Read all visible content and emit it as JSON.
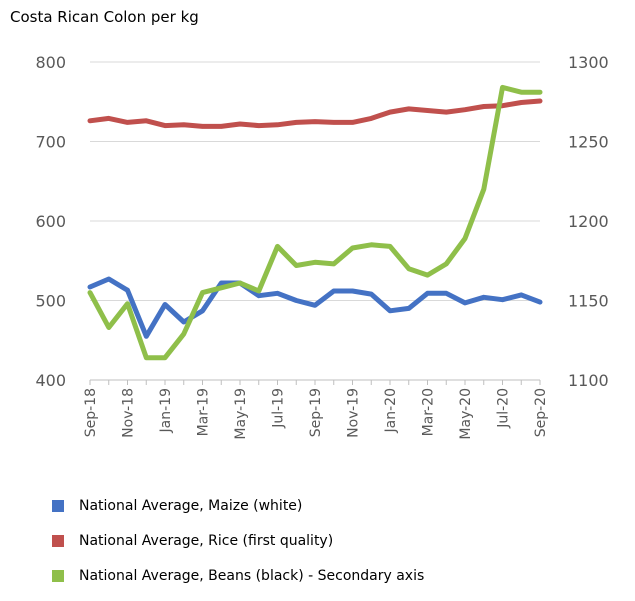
{
  "chart_data": {
    "type": "line",
    "unit_label": "Costa Rican Colon per kg",
    "x": [
      "Sep-18",
      "Oct-18",
      "Nov-18",
      "Dec-18",
      "Jan-19",
      "Feb-19",
      "Mar-19",
      "Apr-19",
      "May-19",
      "Jun-19",
      "Jul-19",
      "Aug-19",
      "Sep-19",
      "Oct-19",
      "Nov-19",
      "Dec-19",
      "Jan-20",
      "Feb-20",
      "Mar-20",
      "Apr-20",
      "May-20",
      "Jun-20",
      "Jul-20",
      "Aug-20",
      "Sep-20"
    ],
    "x_tick_labels": [
      "Sep-18",
      "Nov-18",
      "Jan-19",
      "Mar-19",
      "May-19",
      "Jul-19",
      "Sep-19",
      "Nov-19",
      "Jan-20",
      "Mar-20",
      "May-20",
      "Jul-20",
      "Sep-20"
    ],
    "y_left": {
      "min": 400,
      "max": 800,
      "ticks": [
        400,
        500,
        600,
        700,
        800
      ]
    },
    "y_right": {
      "min": 1100,
      "max": 1300,
      "ticks": [
        1100,
        1150,
        1200,
        1250,
        1300
      ]
    },
    "grid": "horizontal",
    "legend_position": "bottom",
    "series": [
      {
        "name": "National Average, Maize (white)",
        "color": "#4472c4",
        "axis": "left",
        "values": [
          517,
          527,
          513,
          455,
          495,
          473,
          487,
          522,
          522,
          506,
          509,
          500,
          494,
          512,
          512,
          508,
          487,
          490,
          509,
          509,
          497,
          504,
          501,
          507,
          498
        ]
      },
      {
        "name": "National Average, Rice (first quality)",
        "color": "#c0504d",
        "axis": "left",
        "values": [
          726,
          729,
          724,
          726,
          720,
          721,
          719,
          719,
          722,
          720,
          721,
          724,
          725,
          724,
          724,
          729,
          737,
          741,
          739,
          737,
          740,
          744,
          745,
          749,
          751
        ]
      },
      {
        "name": "National Average, Beans (black) - Secondary axis",
        "color": "#8fbf4a",
        "axis": "right",
        "values": [
          1155,
          1133,
          1148,
          1114,
          1114,
          1129,
          1155,
          1158,
          1161,
          1156,
          1184,
          1172,
          1174,
          1173,
          1183,
          1185,
          1184,
          1170,
          1166,
          1173,
          1189,
          1220,
          1284,
          1281,
          1281
        ]
      }
    ]
  }
}
